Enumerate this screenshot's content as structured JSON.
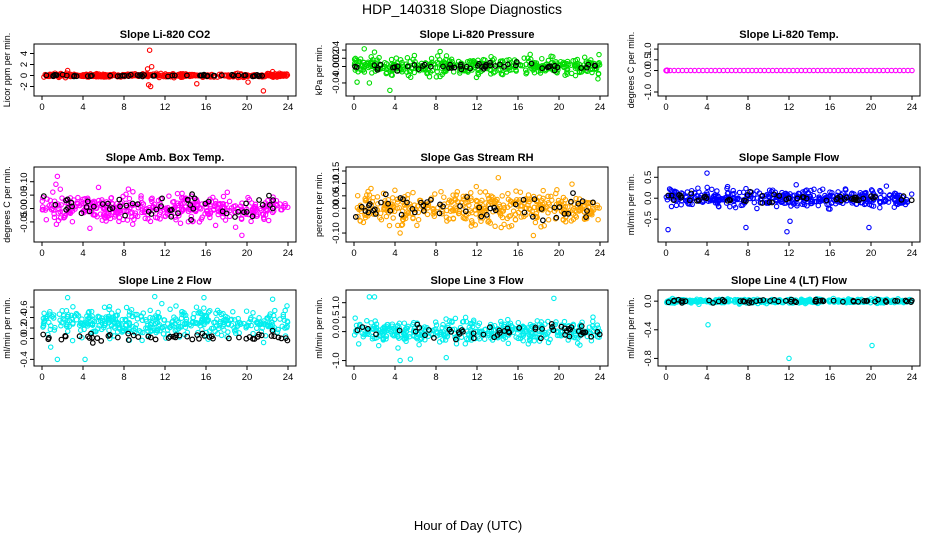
{
  "page": {
    "title": "HDP_140318  Slope Diagnostics",
    "xlabel": "Hour of Day (UTC)"
  },
  "chart_data": [
    {
      "id": "co2",
      "type": "scatter",
      "title": "Slope Li-820 CO2",
      "ylabel": "Licor ppm per min.",
      "xlim": [
        0,
        24
      ],
      "ylim": [
        -3,
        5
      ],
      "xticks": [
        "0",
        "4",
        "8",
        "12",
        "16",
        "20",
        "24"
      ],
      "yticks": [
        "-2",
        "0",
        "2",
        "4"
      ],
      "ytick_values": [
        -2,
        0,
        2,
        4
      ],
      "color": "#ff0000",
      "center": 0.0,
      "spread": 0.35,
      "black_spread": 0.2,
      "outliers": [
        [
          2.5,
          0.9
        ],
        [
          10.5,
          4.6
        ],
        [
          10.3,
          1.2
        ],
        [
          10.7,
          1.6
        ],
        [
          10.4,
          -1.7
        ],
        [
          10.6,
          -2.0
        ],
        [
          15.1,
          -1.5
        ],
        [
          20.1,
          -1.2
        ],
        [
          21.6,
          -2.8
        ],
        [
          22.5,
          0.7
        ]
      ]
    },
    {
      "id": "pressure",
      "type": "scatter",
      "title": "Slope Li-820 Pressure",
      "ylabel": "kPa per min.",
      "xlim": [
        0,
        24
      ],
      "ylim": [
        -0.062,
        0.045
      ],
      "xticks": [
        "0",
        "4",
        "8",
        "12",
        "16",
        "20",
        "24"
      ],
      "yticks": [
        "-0.04",
        "0.00",
        "0.02",
        "0.04"
      ],
      "ytick_values": [
        -0.04,
        0.0,
        0.02,
        0.04
      ],
      "color": "#00dd00",
      "center": 0.0,
      "spread": 0.022,
      "black_spread": 0.01,
      "outliers": [
        [
          1.0,
          0.043
        ],
        [
          3.5,
          -0.058
        ],
        [
          0.3,
          -0.038
        ],
        [
          1.5,
          -0.04
        ],
        [
          23.8,
          -0.03
        ],
        [
          2.0,
          0.035
        ]
      ]
    },
    {
      "id": "temp",
      "type": "scatter",
      "title": "Slope Li-820 Temp.",
      "ylabel": "degrees C per min.",
      "xlim": [
        0,
        24
      ],
      "ylim": [
        -1.0,
        1.05
      ],
      "xticks": [
        "0",
        "4",
        "8",
        "12",
        "16",
        "20",
        "24"
      ],
      "yticks": [
        "-1.0",
        "0.0",
        "0.5",
        "1.0"
      ],
      "ytick_values": [
        -1.0,
        0.0,
        0.5,
        1.0
      ],
      "color": "#ff00ff",
      "center": 0.0,
      "spread": 0.0,
      "black_spread": 0.0,
      "outliers": []
    },
    {
      "id": "ambbox",
      "type": "scatter",
      "title": "Slope Amb. Box Temp.",
      "ylabel": "degrees C per min.",
      "xlim": [
        0,
        24
      ],
      "ylim": [
        -0.11,
        0.14
      ],
      "xticks": [
        "0",
        "4",
        "8",
        "12",
        "16",
        "20",
        "24"
      ],
      "yticks": [
        "-0.05",
        "0.00",
        "0.05",
        "0.10"
      ],
      "ytick_values": [
        -0.05,
        0.0,
        0.05,
        0.1
      ],
      "color": "#ff00ff",
      "center": 0.0,
      "spread": 0.06,
      "black_spread": 0.045,
      "outliers": [
        [
          19.5,
          -0.1
        ],
        [
          1.5,
          0.12
        ]
      ]
    },
    {
      "id": "rh",
      "type": "scatter",
      "title": "Slope Gas Stream RH",
      "ylabel": "percent per min.",
      "xlim": [
        0,
        24
      ],
      "ylim": [
        -0.12,
        0.15
      ],
      "xticks": [
        "0",
        "4",
        "8",
        "12",
        "16",
        "20",
        "24"
      ],
      "yticks": [
        "-0.10",
        "0.00",
        "0.05",
        "0.10",
        "0.15"
      ],
      "ytick_values": [
        -0.1,
        0.0,
        0.05,
        0.1,
        0.15
      ],
      "color": "#ffa500",
      "center": 0.0,
      "spread": 0.07,
      "black_spread": 0.05,
      "outliers": [
        [
          17.5,
          -0.11
        ],
        [
          4.5,
          -0.1
        ]
      ]
    },
    {
      "id": "sample",
      "type": "scatter",
      "title": "Slope Sample Flow",
      "ylabel": "ml/min per min.",
      "xlim": [
        0,
        24
      ],
      "ylim": [
        -0.95,
        0.65
      ],
      "xticks": [
        "0",
        "4",
        "8",
        "12",
        "16",
        "20",
        "24"
      ],
      "yticks": [
        "-0.5",
        "0.0",
        "0.5"
      ],
      "ytick_values": [
        -0.5,
        0.0,
        0.5
      ],
      "color": "#0000ff",
      "center": 0.0,
      "spread": 0.22,
      "black_spread": 0.12,
      "outliers": [
        [
          4.0,
          0.6
        ],
        [
          0.2,
          -0.75
        ],
        [
          7.8,
          -0.7
        ],
        [
          11.8,
          -0.8
        ],
        [
          19.8,
          -0.7
        ],
        [
          12.1,
          -0.55
        ]
      ]
    },
    {
      "id": "line2",
      "type": "scatter",
      "title": "Slope Line 2 Flow",
      "ylabel": "ml/min per min.",
      "xlim": [
        0,
        24
      ],
      "ylim": [
        -0.45,
        0.85
      ],
      "xticks": [
        "0",
        "4",
        "8",
        "12",
        "16",
        "20",
        "24"
      ],
      "yticks": [
        "-0.4",
        "0.0",
        "0.2",
        "0.4",
        "0.6"
      ],
      "ytick_values": [
        -0.4,
        0.0,
        0.2,
        0.4,
        0.6
      ],
      "color": "#00eeee",
      "center": 0.3,
      "spread": 0.3,
      "black_spread": 0.07,
      "black_center": 0.02,
      "outliers": [
        [
          1.5,
          -0.4
        ],
        [
          4.2,
          -0.4
        ],
        [
          2.5,
          0.78
        ],
        [
          11.0,
          0.8
        ],
        [
          15.8,
          0.78
        ],
        [
          22.5,
          0.75
        ]
      ]
    },
    {
      "id": "line3",
      "type": "scatter",
      "title": "Slope Line 3 Flow",
      "ylabel": "ml/min per min.",
      "xlim": [
        0,
        24
      ],
      "ylim": [
        -1.05,
        1.3
      ],
      "xticks": [
        "0",
        "4",
        "8",
        "12",
        "16",
        "20",
        "24"
      ],
      "yticks": [
        "-1.0",
        "0.0",
        "0.5",
        "1.0"
      ],
      "ytick_values": [
        -1.0,
        0.0,
        0.5,
        1.0
      ],
      "color": "#00eeee",
      "center": 0.0,
      "spread": 0.4,
      "black_spread": 0.3,
      "outliers": [
        [
          1.5,
          1.2
        ],
        [
          2.0,
          1.2
        ],
        [
          19.5,
          1.15
        ],
        [
          5.5,
          -0.95
        ],
        [
          9.0,
          -0.9
        ],
        [
          4.5,
          -1.0
        ]
      ]
    },
    {
      "id": "line4",
      "type": "scatter",
      "title": "Slope Line 4 (LT) Flow",
      "ylabel": "ml/min per min.",
      "xlim": [
        0,
        24
      ],
      "ylim": [
        -0.85,
        0.1
      ],
      "xticks": [
        "0",
        "4",
        "8",
        "12",
        "16",
        "20",
        "24"
      ],
      "yticks": [
        "-0.8",
        "-0.4",
        "0.0"
      ],
      "ytick_values": [
        -0.8,
        -0.4,
        0.0
      ],
      "color": "#00eeee",
      "center": 0.0,
      "spread": 0.03,
      "black_spread": 0.02,
      "outliers": [
        [
          4.1,
          -0.33
        ],
        [
          12.0,
          -0.8
        ],
        [
          20.1,
          -0.62
        ]
      ]
    }
  ]
}
